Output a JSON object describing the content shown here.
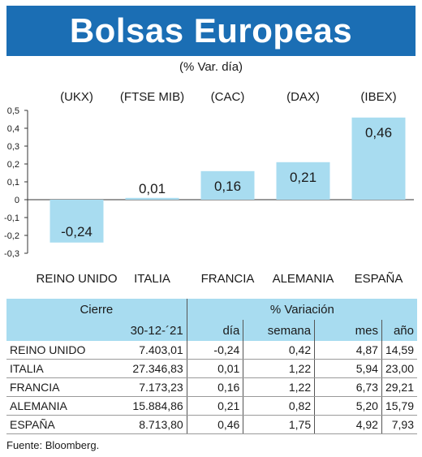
{
  "header": {
    "title": "Bolsas Europeas",
    "subtitle": "(% Var. día)",
    "bg_color": "#1b6eb4"
  },
  "chart_data": {
    "type": "bar",
    "categories": [
      "REINO UNIDO",
      "ITALIA",
      "FRANCIA",
      "ALEMANIA",
      "ESPAÑA"
    ],
    "index_labels": [
      "(UKX)",
      "(FTSE MIB)",
      "(CAC)",
      "(DAX)",
      "(IBEX)"
    ],
    "values": [
      -0.24,
      0.01,
      0.16,
      0.21,
      0.46
    ],
    "value_labels": [
      "-0,24",
      "0,01",
      "0,16",
      "0,21",
      "0,46"
    ],
    "ylim": [
      -0.3,
      0.5
    ],
    "yticks": [
      0.5,
      0.4,
      0.3,
      0.2,
      0.1,
      0,
      -0.1,
      -0.2,
      -0.3
    ],
    "ytick_labels": [
      "0,5",
      "0,4",
      "0,3",
      "0,2",
      "0,1",
      "0",
      "-0,1",
      "-0,2",
      "-0,3"
    ],
    "bar_color": "#a8dcf0",
    "grid": false
  },
  "table": {
    "group_headers": [
      "Cierre",
      "% Variación"
    ],
    "date_header": "30-12-´21",
    "period_headers": [
      "día",
      "semana",
      "mes",
      "año"
    ],
    "header_color": "#a8dcf0",
    "rows": [
      {
        "name": "REINO UNIDO",
        "cierre": "7.403,01",
        "dia": "-0,24",
        "semana": "0,42",
        "mes": "4,87",
        "anio": "14,59"
      },
      {
        "name": "ITALIA",
        "cierre": "27.346,83",
        "dia": "0,01",
        "semana": "1,22",
        "mes": "5,94",
        "anio": "23,00"
      },
      {
        "name": "FRANCIA",
        "cierre": "7.173,23",
        "dia": "0,16",
        "semana": "1,22",
        "mes": "6,73",
        "anio": "29,21"
      },
      {
        "name": "ALEMANIA",
        "cierre": "15.884,86",
        "dia": "0,21",
        "semana": "0,82",
        "mes": "5,20",
        "anio": "15,79"
      },
      {
        "name": "ESPAÑA",
        "cierre": "8.713,80",
        "dia": "0,46",
        "semana": "1,75",
        "mes": "4,92",
        "anio": "7,93"
      }
    ]
  },
  "footer": {
    "source": "Fuente: Bloomberg."
  }
}
